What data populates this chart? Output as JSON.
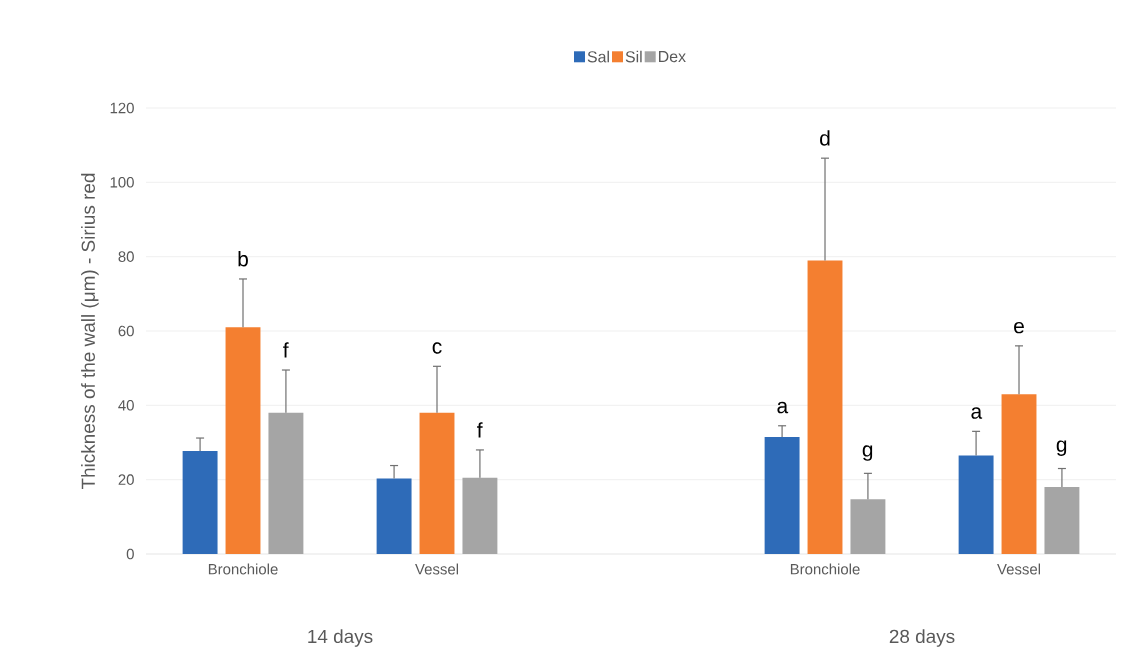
{
  "chart_data": {
    "type": "bar",
    "ylabel": "Thickness of the wall (μm) - Sirius red",
    "categories": [
      "Bronchiole",
      "Vessel",
      null,
      "Bronchiole",
      "Vessel"
    ],
    "series": [
      {
        "name": "Sal",
        "color": "#2e6bb8",
        "values": [
          27.7,
          20.3,
          null,
          31.5,
          26.5
        ],
        "errors": [
          [
            27.7,
            31.2
          ],
          [
            20.3,
            23.8
          ],
          null,
          [
            31.5,
            34.5
          ],
          [
            26.5,
            33
          ]
        ]
      },
      {
        "name": "Sil",
        "color": "#f47f30",
        "values": [
          61,
          38,
          null,
          79,
          43
        ],
        "errors": [
          [
            61,
            74
          ],
          [
            38,
            50.5
          ],
          null,
          [
            79,
            106.5
          ],
          [
            43,
            56
          ]
        ]
      },
      {
        "name": "Dex",
        "color": "#a5a5a5",
        "values": [
          38,
          20.5,
          null,
          14.7,
          18
        ],
        "errors": [
          [
            38,
            49.5
          ],
          [
            20.5,
            28
          ],
          null,
          [
            14.7,
            21.7
          ],
          [
            18,
            23
          ]
        ]
      }
    ],
    "ylim": [
      0,
      120
    ],
    "yticks": [
      0,
      20,
      40,
      60,
      80,
      100,
      120
    ],
    "grid": "y",
    "legend": "top",
    "annotations": [
      "b",
      "f",
      "c",
      "f",
      "a",
      "d",
      "g",
      "a",
      "e",
      "g",
      "14 days",
      "28 days"
    ]
  }
}
